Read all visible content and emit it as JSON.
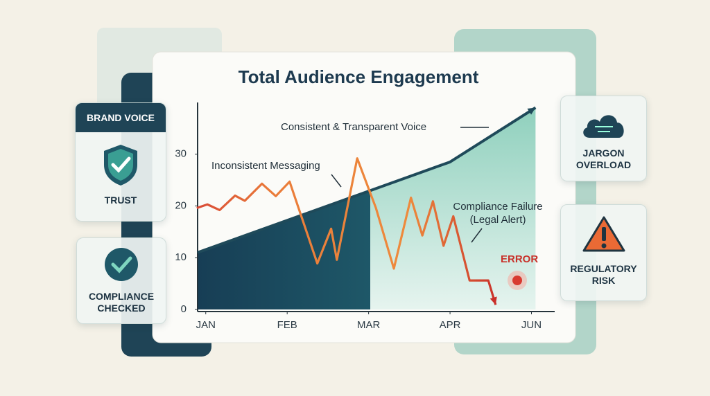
{
  "chart_data": {
    "type": "line",
    "title": "Total Audience Engagement",
    "xlim": [
      -0.1,
      4.2
    ],
    "xticks": [
      {
        "value": 0,
        "label": "JAN"
      },
      {
        "value": 1,
        "label": "FEB"
      },
      {
        "value": 2,
        "label": "MAR"
      },
      {
        "value": 3,
        "label": "APR"
      },
      {
        "value": 4,
        "label": "JUN"
      }
    ],
    "ylim": [
      0,
      40
    ],
    "yticks": [
      0,
      10,
      20,
      30
    ],
    "series": [
      {
        "name": "Consistent & Transparent Voice",
        "color": "#1f4a5a",
        "x": [
          -0.1,
          3.0,
          4.05
        ],
        "values": [
          11,
          28.5,
          39
        ]
      },
      {
        "name": "Inconsistent Messaging",
        "color": "#e8833a",
        "x": [
          -0.11,
          0.02,
          0.17,
          0.36,
          0.48,
          0.69,
          0.86,
          1.03,
          1.37,
          1.54,
          1.61,
          1.86,
          2.09,
          2.31,
          2.52,
          2.66,
          2.79,
          2.92,
          3.04,
          3.24,
          3.47,
          3.56
        ],
        "values": [
          19.6,
          20.3,
          19.2,
          22,
          21,
          24.3,
          21.9,
          24.7,
          8.9,
          15.6,
          9.6,
          29.2,
          19.6,
          7.9,
          21.6,
          14.3,
          20.9,
          12.3,
          18,
          5.6,
          5.6,
          0.9
        ]
      }
    ],
    "annotations": [
      "Compliance Failure",
      "(Legal Alert)",
      "ERROR"
    ]
  },
  "side_panels": {
    "left": {
      "header": "BRAND VOICE",
      "items": [
        "TRUST",
        "COMPLIANCE CHECKED"
      ]
    },
    "right": {
      "items": [
        "JARGON OVERLOAD",
        "REGULATORY RISK"
      ]
    }
  }
}
